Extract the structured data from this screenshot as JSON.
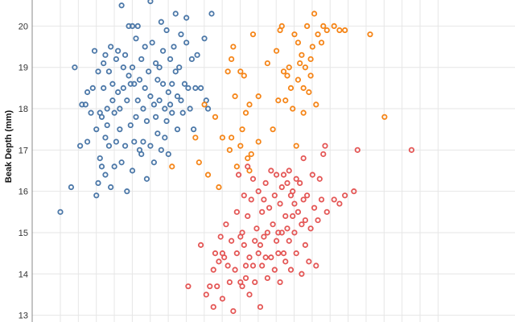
{
  "chart_data": {
    "type": "scatter",
    "title": "",
    "xlabel": "",
    "ylabel": "Beak Depth (mm)",
    "ylim": [
      13,
      20.6
    ],
    "xlim": [
      0,
      21
    ],
    "y_ticks": [
      13,
      14,
      15,
      16,
      17,
      18,
      19,
      20
    ],
    "grid": true,
    "legend": "none",
    "series": [
      {
        "color": "#4c78a8",
        "points": [
          [
            0,
            15.5
          ],
          [
            0.6,
            16.1
          ],
          [
            0.8,
            19.0
          ],
          [
            1.1,
            17.1
          ],
          [
            1.2,
            18.1
          ],
          [
            1.4,
            18.1
          ],
          [
            1.5,
            18.4
          ],
          [
            1.5,
            17.2
          ],
          [
            1.7,
            17.9
          ],
          [
            1.8,
            18.5
          ],
          [
            1.9,
            19.4
          ],
          [
            2.0,
            15.9
          ],
          [
            2.0,
            17.5
          ],
          [
            2.1,
            18.9
          ],
          [
            2.1,
            16.2
          ],
          [
            2.2,
            17.9
          ],
          [
            2.2,
            16.8
          ],
          [
            2.3,
            16.6
          ],
          [
            2.3,
            17.8
          ],
          [
            2.4,
            18.5
          ],
          [
            2.4,
            19.1
          ],
          [
            2.5,
            19.3
          ],
          [
            2.5,
            16.4
          ],
          [
            2.5,
            17.3
          ],
          [
            2.6,
            17.6
          ],
          [
            2.6,
            18.0
          ],
          [
            2.7,
            18.9
          ],
          [
            2.7,
            17.1
          ],
          [
            2.8,
            16.1
          ],
          [
            2.8,
            19.5
          ],
          [
            2.9,
            18.2
          ],
          [
            2.9,
            18.6
          ],
          [
            3.0,
            17.9
          ],
          [
            3.0,
            16.6
          ],
          [
            3.1,
            19.2
          ],
          [
            3.1,
            17.2
          ],
          [
            3.2,
            18.4
          ],
          [
            3.2,
            19.4
          ],
          [
            3.3,
            17.5
          ],
          [
            3.3,
            18.0
          ],
          [
            3.4,
            16.7
          ],
          [
            3.4,
            20.5
          ],
          [
            3.5,
            19.0
          ],
          [
            3.5,
            18.5
          ],
          [
            3.6,
            17.1
          ],
          [
            3.6,
            19.3
          ],
          [
            3.7,
            16.0
          ],
          [
            3.7,
            18.2
          ],
          [
            3.8,
            18.8
          ],
          [
            3.8,
            20.0
          ],
          [
            3.9,
            17.6
          ],
          [
            3.9,
            18.6
          ],
          [
            4.0,
            16.5
          ],
          [
            4.0,
            19.0
          ],
          [
            4.0,
            20.0
          ],
          [
            4.1,
            17.2
          ],
          [
            4.1,
            18.6
          ],
          [
            4.2,
            17.8
          ],
          [
            4.2,
            19.7
          ],
          [
            4.3,
            18.2
          ],
          [
            4.3,
            20.0
          ],
          [
            4.4,
            17.0
          ],
          [
            4.4,
            18.7
          ],
          [
            4.5,
            16.9
          ],
          [
            4.5,
            19.2
          ],
          [
            4.6,
            18.0
          ],
          [
            4.6,
            17.2
          ],
          [
            4.7,
            18.5
          ],
          [
            4.7,
            19.5
          ],
          [
            4.8,
            17.7
          ],
          [
            4.8,
            16.3
          ],
          [
            4.9,
            18.9
          ],
          [
            5.0,
            18.3
          ],
          [
            5.0,
            17.1
          ],
          [
            5.0,
            20.6
          ],
          [
            5.1,
            19.6
          ],
          [
            5.2,
            18.1
          ],
          [
            5.2,
            16.7
          ],
          [
            5.3,
            17.8
          ],
          [
            5.3,
            19.1
          ],
          [
            5.4,
            18.7
          ],
          [
            5.4,
            17.4
          ],
          [
            5.5,
            18.2
          ],
          [
            5.5,
            19.0
          ],
          [
            5.6,
            17.0
          ],
          [
            5.6,
            20.1
          ],
          [
            5.7,
            18.6
          ],
          [
            5.7,
            19.4
          ],
          [
            5.8,
            17.3
          ],
          [
            5.8,
            18.0
          ],
          [
            5.9,
            19.9
          ],
          [
            5.9,
            17.7
          ],
          [
            6.0,
            18.4
          ],
          [
            6.0,
            16.9
          ],
          [
            6.1,
            19.2
          ],
          [
            6.1,
            18.1
          ],
          [
            6.2,
            18.6
          ],
          [
            6.2,
            17.9
          ],
          [
            6.3,
            19.5
          ],
          [
            6.4,
            20.3
          ],
          [
            6.4,
            18.9
          ],
          [
            6.5,
            18.3
          ],
          [
            6.5,
            17.5
          ],
          [
            6.6,
            19.0
          ],
          [
            6.7,
            18.2
          ],
          [
            6.7,
            19.8
          ],
          [
            6.8,
            17.9
          ],
          [
            6.9,
            18.6
          ],
          [
            7.0,
            19.6
          ],
          [
            7.0,
            20.2
          ],
          [
            7.1,
            18.5
          ],
          [
            7.2,
            18.0
          ],
          [
            7.3,
            19.2
          ],
          [
            7.4,
            17.5
          ],
          [
            7.5,
            18.5
          ],
          [
            7.6,
            19.3
          ],
          [
            7.8,
            18.5
          ],
          [
            8.0,
            19.7
          ],
          [
            8.1,
            18.2
          ],
          [
            8.2,
            18.0
          ],
          [
            8.4,
            20.3
          ]
        ]
      },
      {
        "color": "#f58518",
        "points": [
          [
            6.2,
            16.6
          ],
          [
            7.5,
            17.3
          ],
          [
            7.7,
            16.7
          ],
          [
            8.0,
            18.1
          ],
          [
            8.2,
            16.4
          ],
          [
            8.6,
            17.8
          ],
          [
            8.8,
            16.1
          ],
          [
            9.0,
            17.3
          ],
          [
            9.3,
            18.9
          ],
          [
            9.4,
            17.0
          ],
          [
            9.5,
            17.3
          ],
          [
            9.5,
            19.2
          ],
          [
            9.6,
            19.5
          ],
          [
            9.7,
            18.3
          ],
          [
            9.8,
            16.6
          ],
          [
            10.0,
            18.9
          ],
          [
            10.0,
            17.1
          ],
          [
            10.1,
            17.5
          ],
          [
            10.2,
            18.8
          ],
          [
            10.3,
            17.9
          ],
          [
            10.4,
            16.8
          ],
          [
            10.5,
            18.1
          ],
          [
            10.5,
            16.5
          ],
          [
            10.6,
            16.9
          ],
          [
            10.7,
            19.8
          ],
          [
            11.0,
            17.2
          ],
          [
            11.0,
            18.3
          ],
          [
            11.5,
            19.1
          ],
          [
            11.8,
            17.5
          ],
          [
            12.0,
            19.4
          ],
          [
            12.1,
            18.2
          ],
          [
            12.2,
            19.9
          ],
          [
            12.3,
            20.0
          ],
          [
            12.4,
            18.9
          ],
          [
            12.5,
            18.2
          ],
          [
            12.6,
            18.8
          ],
          [
            12.7,
            19.0
          ],
          [
            12.8,
            18.5
          ],
          [
            12.9,
            18.0
          ],
          [
            13.0,
            19.8
          ],
          [
            13.1,
            17.1
          ],
          [
            13.2,
            18.7
          ],
          [
            13.2,
            19.6
          ],
          [
            13.3,
            19.1
          ],
          [
            13.4,
            19.3
          ],
          [
            13.5,
            17.9
          ],
          [
            13.5,
            18.5
          ],
          [
            13.6,
            19.0
          ],
          [
            13.7,
            20.0
          ],
          [
            13.8,
            18.4
          ],
          [
            13.9,
            19.2
          ],
          [
            13.9,
            18.8
          ],
          [
            14.0,
            19.5
          ],
          [
            14.1,
            20.3
          ],
          [
            14.2,
            18.1
          ],
          [
            14.3,
            19.8
          ],
          [
            14.5,
            19.6
          ],
          [
            14.6,
            20.0
          ],
          [
            14.8,
            19.9
          ],
          [
            15.2,
            20.0
          ],
          [
            15.5,
            19.9
          ],
          [
            15.8,
            19.9
          ],
          [
            17.2,
            19.8
          ],
          [
            18.0,
            17.8
          ]
        ]
      },
      {
        "color": "#e45756",
        "points": [
          [
            7.1,
            13.7
          ],
          [
            7.8,
            14.7
          ],
          [
            8.1,
            13.5
          ],
          [
            8.3,
            13.7
          ],
          [
            8.5,
            14.1
          ],
          [
            8.5,
            13.2
          ],
          [
            8.6,
            14.5
          ],
          [
            8.7,
            13.7
          ],
          [
            8.8,
            14.3
          ],
          [
            8.9,
            14.9
          ],
          [
            9.0,
            14.5
          ],
          [
            9.0,
            13.4
          ],
          [
            9.1,
            14.4
          ],
          [
            9.2,
            15.2
          ],
          [
            9.3,
            14.2
          ],
          [
            9.4,
            13.8
          ],
          [
            9.5,
            14.8
          ],
          [
            9.6,
            13.1
          ],
          [
            9.7,
            14.1
          ],
          [
            9.8,
            15.5
          ],
          [
            9.8,
            14.5
          ],
          [
            9.9,
            16.4
          ],
          [
            10.0,
            13.8
          ],
          [
            10.0,
            14.9
          ],
          [
            10.1,
            13.7
          ],
          [
            10.1,
            15.0
          ],
          [
            10.2,
            14.7
          ],
          [
            10.2,
            15.9
          ],
          [
            10.3,
            14.2
          ],
          [
            10.3,
            13.9
          ],
          [
            10.4,
            15.4
          ],
          [
            10.4,
            16.6
          ],
          [
            10.5,
            14.4
          ],
          [
            10.5,
            13.5
          ],
          [
            10.6,
            15.8
          ],
          [
            10.7,
            14.2
          ],
          [
            10.7,
            16.3
          ],
          [
            10.8,
            14.8
          ],
          [
            10.8,
            13.8
          ],
          [
            10.9,
            15.1
          ],
          [
            11.0,
            14.5
          ],
          [
            11.0,
            16.0
          ],
          [
            11.1,
            13.2
          ],
          [
            11.1,
            14.7
          ],
          [
            11.2,
            15.5
          ],
          [
            11.2,
            14.2
          ],
          [
            11.3,
            15.8
          ],
          [
            11.3,
            14.9
          ],
          [
            11.4,
            14.4
          ],
          [
            11.4,
            16.2
          ],
          [
            11.5,
            15.0
          ],
          [
            11.5,
            13.9
          ],
          [
            11.6,
            15.6
          ],
          [
            11.7,
            14.4
          ],
          [
            11.7,
            16.5
          ],
          [
            11.8,
            15.2
          ],
          [
            11.9,
            14.1
          ],
          [
            11.9,
            15.9
          ],
          [
            12.0,
            14.8
          ],
          [
            12.0,
            16.4
          ],
          [
            12.1,
            15.0
          ],
          [
            12.1,
            14.5
          ],
          [
            12.2,
            15.7
          ],
          [
            12.2,
            13.8
          ],
          [
            12.3,
            16.1
          ],
          [
            12.3,
            15.0
          ],
          [
            12.4,
            14.5
          ],
          [
            12.4,
            16.4
          ],
          [
            12.5,
            15.4
          ],
          [
            12.5,
            14.3
          ],
          [
            12.6,
            16.2
          ],
          [
            12.6,
            15.1
          ],
          [
            12.7,
            16.5
          ],
          [
            12.7,
            14.8
          ],
          [
            12.8,
            15.9
          ],
          [
            12.8,
            14.1
          ],
          [
            12.9,
            15.4
          ],
          [
            12.9,
            16.0
          ],
          [
            13.0,
            15.7
          ],
          [
            13.0,
            15.0
          ],
          [
            13.1,
            16.3
          ],
          [
            13.1,
            14.5
          ],
          [
            13.2,
            15.5
          ],
          [
            13.3,
            16.2
          ],
          [
            13.4,
            14.0
          ],
          [
            13.4,
            15.2
          ],
          [
            13.5,
            15.8
          ],
          [
            13.5,
            16.8
          ],
          [
            13.6,
            15.3
          ],
          [
            13.6,
            14.7
          ],
          [
            13.7,
            15.9
          ],
          [
            13.8,
            14.3
          ],
          [
            13.9,
            15.1
          ],
          [
            14.0,
            16.4
          ],
          [
            14.1,
            15.6
          ],
          [
            14.2,
            14.2
          ],
          [
            14.3,
            15.3
          ],
          [
            14.4,
            16.3
          ],
          [
            14.5,
            15.8
          ],
          [
            14.6,
            16.9
          ],
          [
            14.7,
            17.1
          ],
          [
            14.8,
            15.5
          ],
          [
            15.2,
            15.8
          ],
          [
            15.5,
            15.7
          ],
          [
            15.8,
            15.9
          ],
          [
            16.3,
            16.0
          ],
          [
            16.5,
            17.0
          ],
          [
            19.5,
            17.0
          ]
        ]
      }
    ]
  }
}
